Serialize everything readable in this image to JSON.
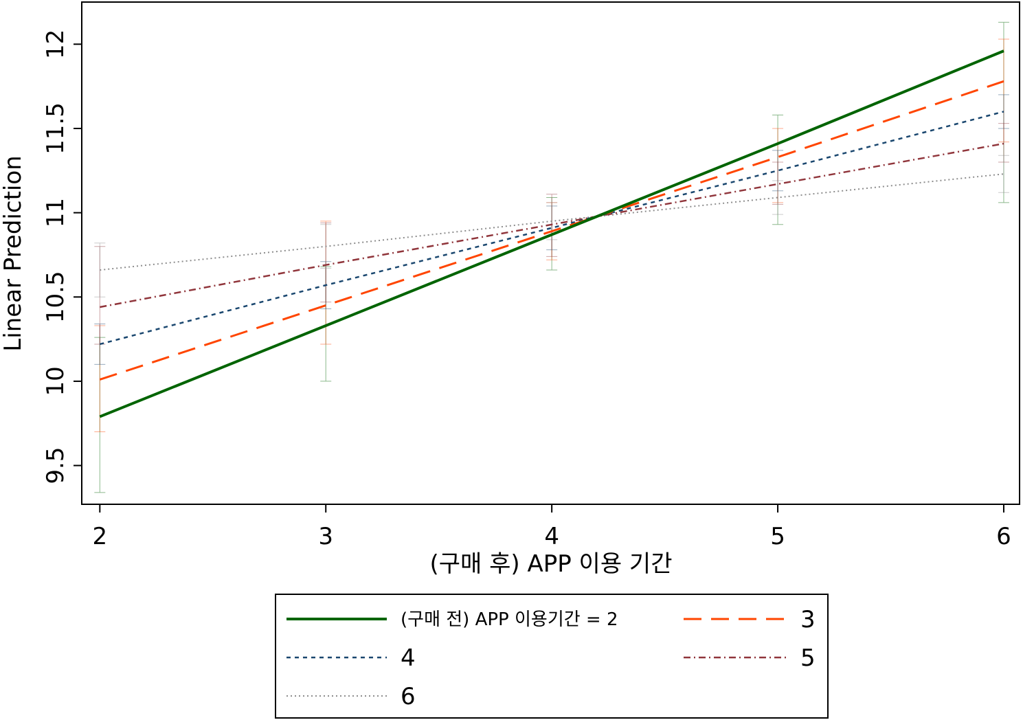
{
  "chart_data": {
    "type": "line",
    "xlabel": "(구매 후) APP 이용 기간",
    "ylabel": "Linear Prediction",
    "x": [
      2,
      3,
      4,
      5,
      6
    ],
    "xticks": [
      "2",
      "3",
      "4",
      "5",
      "6"
    ],
    "yticks": [
      "9.5",
      "10",
      "10.5",
      "11",
      "11.5",
      "12"
    ],
    "xlim": [
      1.92,
      6.07
    ],
    "ylim": [
      9.27,
      12.25
    ],
    "grid": false,
    "legend_position": "bottom",
    "series": [
      {
        "name": "(구매 전) APP 이용기간 = 2",
        "values": [
          9.79,
          10.33,
          10.87,
          11.41,
          11.96
        ],
        "ci_low": [
          9.34,
          10.0,
          10.66,
          10.93,
          11.06
        ],
        "ci_high": [
          10.26,
          10.68,
          11.09,
          11.58,
          12.13
        ],
        "color": "#006400",
        "style": "solid"
      },
      {
        "name": "3",
        "values": [
          10.01,
          10.45,
          10.89,
          11.33,
          11.78
        ],
        "ci_low": [
          9.7,
          10.22,
          10.72,
          11.06,
          11.42
        ],
        "ci_high": [
          10.33,
          10.95,
          11.06,
          11.5,
          12.03
        ],
        "color": "#ff4500",
        "style": "longdash"
      },
      {
        "name": "4",
        "values": [
          10.22,
          10.57,
          10.91,
          11.25,
          11.6
        ],
        "ci_low": [
          10.1,
          10.43,
          10.78,
          11.13,
          11.5
        ],
        "ci_high": [
          10.34,
          10.71,
          11.04,
          11.37,
          11.7
        ],
        "color": "#1a476f",
        "style": "dash"
      },
      {
        "name": "5",
        "values": [
          10.44,
          10.69,
          10.93,
          11.17,
          11.41
        ],
        "ci_low": [
          10.22,
          10.47,
          10.74,
          11.05,
          11.3
        ],
        "ci_high": [
          10.8,
          10.94,
          11.11,
          11.3,
          11.53
        ],
        "color": "#90353b",
        "style": "dashdot"
      },
      {
        "name": "6",
        "values": [
          10.66,
          10.8,
          10.95,
          11.09,
          11.23
        ],
        "ci_low": [
          10.5,
          10.67,
          10.84,
          10.99,
          11.12
        ],
        "ci_high": [
          10.82,
          10.93,
          11.06,
          11.19,
          11.34
        ],
        "color": "#8c8c8c",
        "style": "dot"
      }
    ]
  }
}
